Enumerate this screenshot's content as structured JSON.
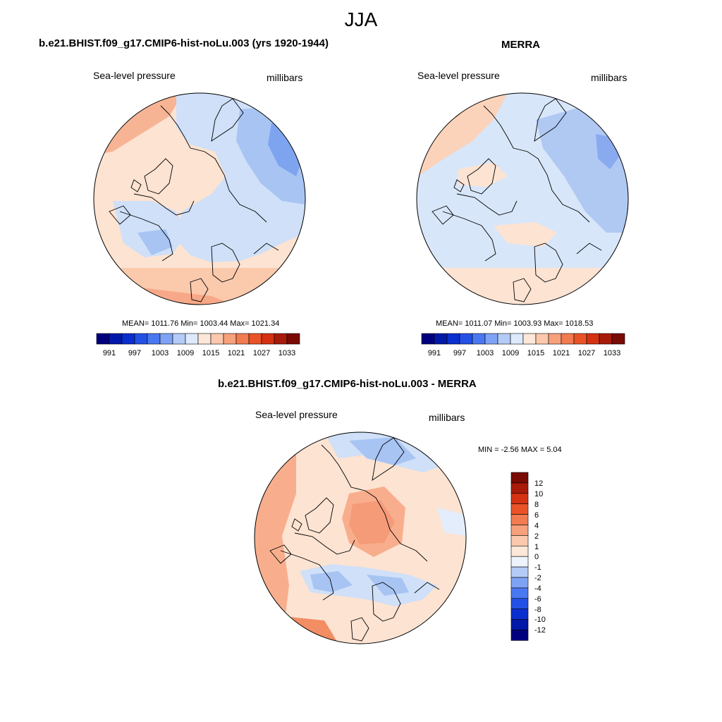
{
  "season_title": "JJA",
  "panels": [
    {
      "title": "b.e21.BHIST.f09_g17.CMIP6-hist-noLu.003 (yrs 1920-1944)",
      "variable": "Sea-level pressure",
      "units": "millibars",
      "stats": "MEAN= 1011.76  Min= 1003.44  Max= 1021.34"
    },
    {
      "title": "MERRA",
      "variable": "Sea-level pressure",
      "units": "millibars",
      "stats": "MEAN= 1011.07  Min= 1003.93  Max= 1018.53"
    },
    {
      "title": "b.e21.BHIST.f09_g17.CMIP6-hist-noLu.003 - MERRA",
      "variable": "Sea-level pressure",
      "units": "millibars",
      "stats": "MIN =  -2.56 MAX =   5.04"
    }
  ],
  "abs_colorbar": {
    "labels": [
      "991",
      "997",
      "1003",
      "1009",
      "1015",
      "1021",
      "1027",
      "1033"
    ],
    "colors": [
      "#00007f",
      "#0019a8",
      "#0a2fcf",
      "#2351e6",
      "#4a78f0",
      "#7ea3f5",
      "#b4cbf7",
      "#ddeafb",
      "#fde7d8",
      "#fbc8ad",
      "#f7a07c",
      "#f27b51",
      "#ea5328",
      "#d43212",
      "#a81a0a",
      "#7a0a04"
    ]
  },
  "diff_colorbar": {
    "labels": [
      "12",
      "10",
      "8",
      "6",
      "4",
      "2",
      "1",
      "0",
      "-1",
      "-2",
      "-4",
      "-6",
      "-8",
      "-10",
      "-12"
    ],
    "colors": [
      "#7a0a04",
      "#a81a0a",
      "#d43212",
      "#ea5328",
      "#f27b51",
      "#f7a07c",
      "#fbc8ad",
      "#fde7d8",
      "#eef3fb",
      "#b4cbf7",
      "#7ea3f5",
      "#4a78f0",
      "#2351e6",
      "#0a2fcf",
      "#0019a8",
      "#00007f"
    ]
  },
  "colors": {
    "land_outline": "#000000",
    "ring": "#000000"
  }
}
